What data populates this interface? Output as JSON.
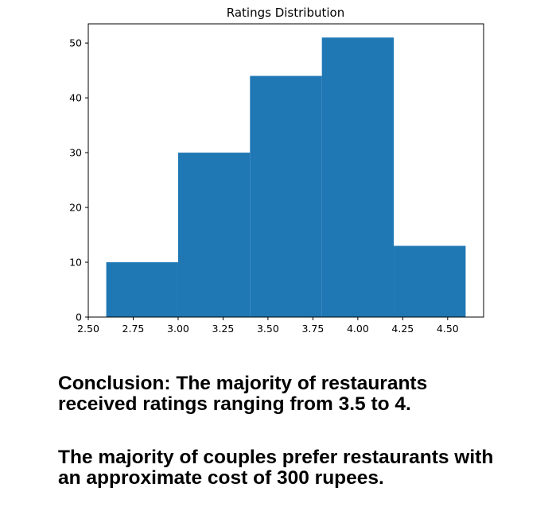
{
  "chart_data": {
    "type": "bar",
    "title": "Ratings Distribution",
    "xlabel": "",
    "ylabel": "",
    "bins": [
      {
        "start": 2.6,
        "end": 3.0,
        "count": 10
      },
      {
        "start": 3.0,
        "end": 3.4,
        "count": 30
      },
      {
        "start": 3.4,
        "end": 3.8,
        "count": 44
      },
      {
        "start": 3.8,
        "end": 4.2,
        "count": 51
      },
      {
        "start": 4.2,
        "end": 4.6,
        "count": 13
      }
    ],
    "xlim": [
      2.5,
      4.7
    ],
    "ylim": [
      0,
      53.5
    ],
    "x_ticks": [
      "2.50",
      "2.75",
      "3.00",
      "3.25",
      "3.50",
      "3.75",
      "4.00",
      "4.25",
      "4.50"
    ],
    "x_tick_values": [
      2.5,
      2.75,
      3.0,
      3.25,
      3.5,
      3.75,
      4.0,
      4.25,
      4.5
    ],
    "y_ticks": [
      "0",
      "10",
      "20",
      "30",
      "40",
      "50"
    ],
    "y_tick_values": [
      0,
      10,
      20,
      30,
      40,
      50
    ],
    "bar_color": "#1f77b4",
    "grid": false,
    "legend": "none"
  },
  "text": {
    "conclusion_line1": "Conclusion: The majority of restaurants",
    "conclusion_line2": "received ratings ranging from 3.5 to 4.",
    "couples_line1": "The majority of couples prefer restaurants with",
    "couples_line2": "an approximate cost of 300 rupees."
  }
}
